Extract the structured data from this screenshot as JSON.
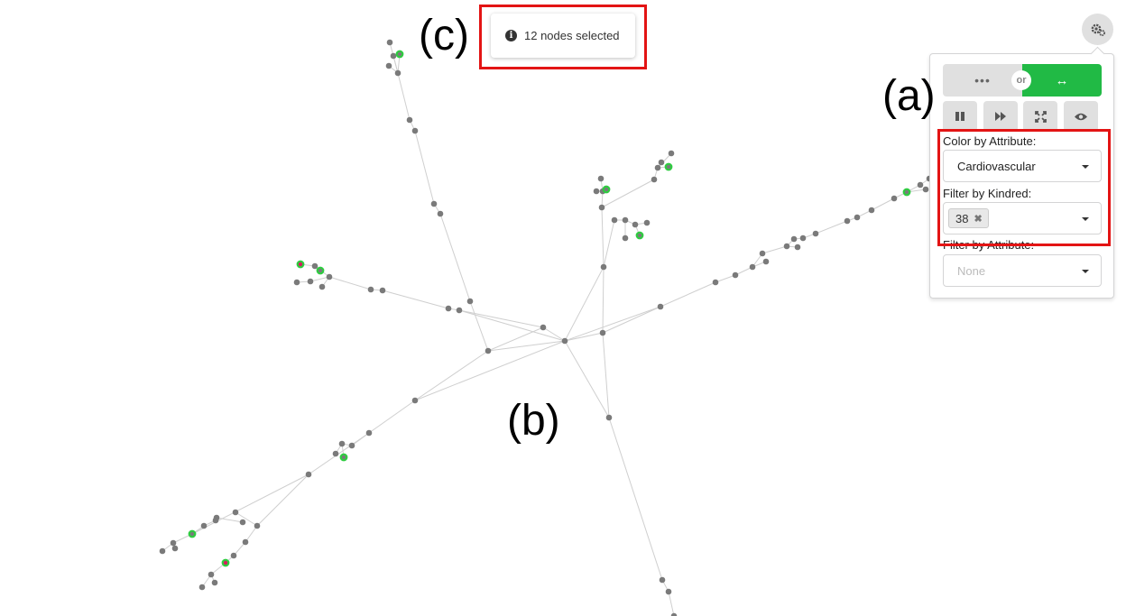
{
  "figure_labels": {
    "a": "(a)",
    "b": "(b)",
    "c": "(c)"
  },
  "toast": {
    "text": "12 nodes selected",
    "icon": "info-icon"
  },
  "settings": {
    "icon": "gear-icon"
  },
  "panel": {
    "layout_toggle": {
      "left_label": "•••",
      "or_label": "or",
      "right_label": "↔",
      "active": "right"
    },
    "controls": [
      {
        "name": "pause",
        "icon": "pause-icon"
      },
      {
        "name": "fast-forward",
        "icon": "fast-forward-icon"
      },
      {
        "name": "fit-view",
        "icon": "expand-icon"
      },
      {
        "name": "visibility",
        "icon": "eye-icon"
      }
    ],
    "color_by_attribute": {
      "label": "Color by Attribute:",
      "value": "Cardiovascular"
    },
    "filter_by_kindred": {
      "label": "Filter by Kindred:",
      "selected": [
        "38"
      ],
      "remove_glyph": "✖"
    },
    "filter_by_attribute": {
      "label": "Filter by Attribute:",
      "placeholder": "None"
    }
  },
  "colors": {
    "toggle_active": "#21ba45",
    "highlight_box": "#e31414",
    "node": "#7a7a7a",
    "node_selected_ring": "#2ecc40",
    "node_attribute": "#d81b60",
    "edge": "#cfcfcf"
  },
  "graph": {
    "selected_count": 12
  }
}
